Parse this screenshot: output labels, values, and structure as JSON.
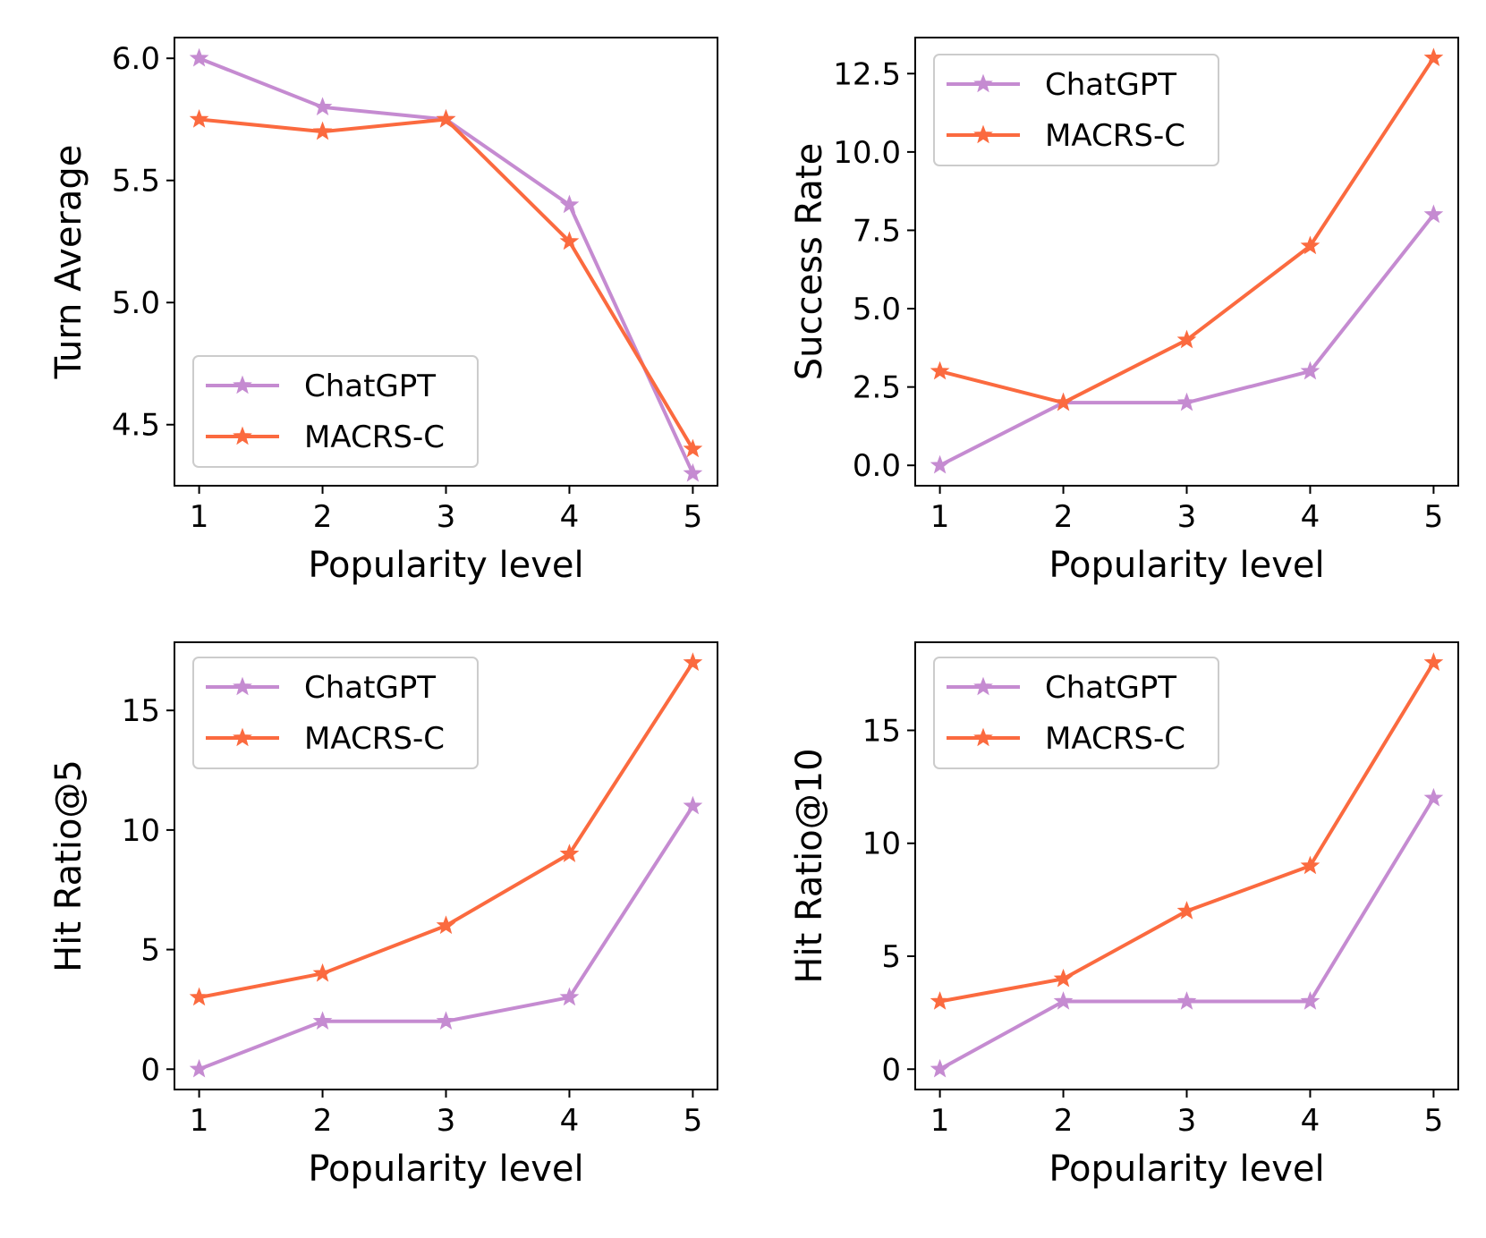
{
  "colors": {
    "ChatGPT": "#c58bd1",
    "MACRS-C": "#fb6a3f"
  },
  "chart_data": [
    {
      "type": "line",
      "x": [
        1,
        2,
        3,
        4,
        5
      ],
      "xlabel": "Popularity level",
      "ylabel": "Turn Average",
      "xticks": [
        "1",
        "2",
        "3",
        "4",
        "5"
      ],
      "yticks": [
        "4.5",
        "5.0",
        "5.5",
        "6.0"
      ],
      "ylim": [
        4.25,
        6.085
      ],
      "legend": "lower-left",
      "grid": false,
      "series": [
        {
          "name": "ChatGPT",
          "values": [
            6.0,
            5.8,
            5.75,
            5.4,
            4.3
          ]
        },
        {
          "name": "MACRS-C",
          "values": [
            5.75,
            5.7,
            5.75,
            5.25,
            4.4
          ]
        }
      ]
    },
    {
      "type": "line",
      "x": [
        1,
        2,
        3,
        4,
        5
      ],
      "xlabel": "Popularity level",
      "ylabel": "Success Rate",
      "xticks": [
        "1",
        "2",
        "3",
        "4",
        "5"
      ],
      "yticks": [
        "0.0",
        "2.5",
        "5.0",
        "7.5",
        "10.0",
        "12.5"
      ],
      "ylim": [
        -0.65,
        13.65
      ],
      "legend": "upper-left",
      "grid": false,
      "series": [
        {
          "name": "ChatGPT",
          "values": [
            0,
            2,
            2,
            3,
            8
          ]
        },
        {
          "name": "MACRS-C",
          "values": [
            3,
            2,
            4,
            7,
            13
          ]
        }
      ]
    },
    {
      "type": "line",
      "x": [
        1,
        2,
        3,
        4,
        5
      ],
      "xlabel": "Popularity level",
      "ylabel": "Hit Ratio@5",
      "xticks": [
        "1",
        "2",
        "3",
        "4",
        "5"
      ],
      "yticks": [
        "0",
        "5",
        "10",
        "15"
      ],
      "ylim": [
        -0.85,
        17.85
      ],
      "legend": "upper-left",
      "grid": false,
      "series": [
        {
          "name": "ChatGPT",
          "values": [
            0,
            2,
            2,
            3,
            11
          ]
        },
        {
          "name": "MACRS-C",
          "values": [
            3,
            4,
            6,
            9,
            17
          ]
        }
      ]
    },
    {
      "type": "line",
      "x": [
        1,
        2,
        3,
        4,
        5
      ],
      "xlabel": "Popularity level",
      "ylabel": "Hit Ratio@10",
      "xticks": [
        "1",
        "2",
        "3",
        "4",
        "5"
      ],
      "yticks": [
        "0",
        "5",
        "10",
        "15"
      ],
      "ylim": [
        -0.9,
        18.9
      ],
      "legend": "upper-left",
      "grid": false,
      "series": [
        {
          "name": "ChatGPT",
          "values": [
            0,
            3,
            3,
            3,
            12
          ]
        },
        {
          "name": "MACRS-C",
          "values": [
            3,
            4,
            7,
            9,
            18
          ]
        }
      ]
    }
  ]
}
